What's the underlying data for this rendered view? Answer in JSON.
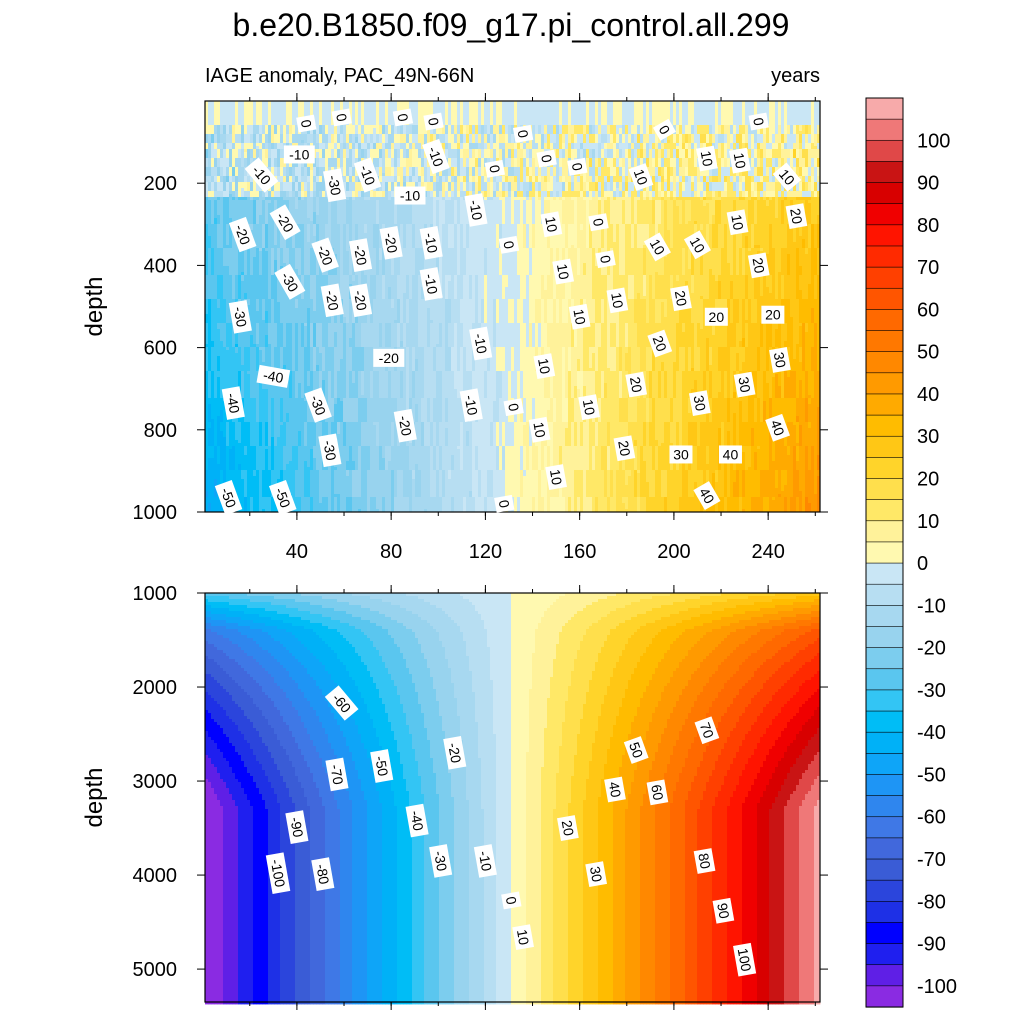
{
  "chart_data": {
    "type": "heatmap",
    "title": "b.e20.B1850.f09_g17.pi_control.all.299",
    "subtitle_left": "IAGE anomaly, PAC_49N-66N",
    "subtitle_right": "years",
    "x_ticks": [
      "40",
      "80",
      "120",
      "160",
      "200",
      "240"
    ],
    "x_tick_values": [
      40,
      80,
      120,
      160,
      200,
      240
    ],
    "xlim": [
      1,
      262
    ],
    "colorbar": {
      "levels": [
        -105,
        -100,
        -95,
        -90,
        -85,
        -80,
        -75,
        -70,
        -65,
        -60,
        -55,
        -50,
        -45,
        -40,
        -35,
        -30,
        -25,
        -20,
        -15,
        -10,
        -5,
        0,
        5,
        10,
        15,
        20,
        25,
        30,
        35,
        40,
        45,
        50,
        55,
        60,
        65,
        70,
        75,
        80,
        85,
        90,
        95,
        100,
        105
      ],
      "colors": [
        "#8a2be2",
        "#5f1fe6",
        "#1f1fef",
        "#0000ff",
        "#1e30e6",
        "#2b45dc",
        "#3a5cd6",
        "#4168dc",
        "#3f78e6",
        "#2f86ee",
        "#1e95f5",
        "#0ea5f8",
        "#00b1f7",
        "#00bdf6",
        "#33c5f4",
        "#5ac6ef",
        "#7ccdee",
        "#98d3ee",
        "#a7d8f0",
        "#b7def2",
        "#c9e6f5",
        "#fff9b0",
        "#fff29a",
        "#ffe867",
        "#ffdf4c",
        "#ffd42a",
        "#ffc715",
        "#ffbc00",
        "#ffaa00",
        "#ff9a00",
        "#ff8800",
        "#ff7800",
        "#ff6900",
        "#ff5500",
        "#ff4000",
        "#ff2a00",
        "#ff1400",
        "#f00000",
        "#d80000",
        "#c91414",
        "#e04848",
        "#ef7878",
        "#f7aaaa"
      ],
      "tick_labels": [
        "100",
        "90",
        "80",
        "70",
        "60",
        "50",
        "40",
        "30",
        "20",
        "10",
        "0",
        "-10",
        "-20",
        "-30",
        "-40",
        "-50",
        "-60",
        "-70",
        "-80",
        "-90",
        "-100"
      ],
      "tick_values": [
        100,
        90,
        80,
        70,
        60,
        50,
        40,
        30,
        20,
        10,
        0,
        -10,
        -20,
        -30,
        -40,
        -50,
        -60,
        -70,
        -80,
        -90,
        -100
      ]
    },
    "panels": [
      {
        "name": "upper",
        "ylabel": "depth",
        "ylim": [
          0,
          1000
        ],
        "y_inverted": true,
        "y_ticks": [
          "200",
          "400",
          "600",
          "800",
          "1000"
        ],
        "y_tick_values": [
          200,
          400,
          600,
          800,
          1000
        ],
        "zero_crossing_x": 131,
        "field_description": "IAGE anomaly grows from about -50 (left, deep) to +45 (right, deep); noisy near surface",
        "contour_labels": [
          {
            "x": 44,
            "y": 55,
            "text": "0",
            "rot": 80
          },
          {
            "x": 59,
            "y": 40,
            "text": "0",
            "rot": 80
          },
          {
            "x": 85,
            "y": 40,
            "text": "0",
            "rot": 80
          },
          {
            "x": 98,
            "y": 50,
            "text": "0",
            "rot": 80
          },
          {
            "x": 136,
            "y": 80,
            "text": "0",
            "rot": 80
          },
          {
            "x": 196,
            "y": 70,
            "text": "0",
            "rot": 60
          },
          {
            "x": 236,
            "y": 50,
            "text": "0",
            "rot": 80
          },
          {
            "x": 41,
            "y": 130,
            "text": "-10",
            "rot": 0
          },
          {
            "x": 99,
            "y": 135,
            "text": "-10",
            "rot": 70
          },
          {
            "x": 146,
            "y": 140,
            "text": "0",
            "rot": 80
          },
          {
            "x": 159,
            "y": 160,
            "text": "0",
            "rot": 80
          },
          {
            "x": 214,
            "y": 140,
            "text": "10",
            "rot": 80
          },
          {
            "x": 228,
            "y": 145,
            "text": "10",
            "rot": 80
          },
          {
            "x": 25,
            "y": 180,
            "text": "-10",
            "rot": 50
          },
          {
            "x": 56,
            "y": 205,
            "text": "-30",
            "rot": 80
          },
          {
            "x": 70,
            "y": 180,
            "text": "-10",
            "rot": 70
          },
          {
            "x": 124,
            "y": 165,
            "text": "0",
            "rot": 80
          },
          {
            "x": 186,
            "y": 185,
            "text": "10",
            "rot": 70
          },
          {
            "x": 248,
            "y": 185,
            "text": "10",
            "rot": 50
          },
          {
            "x": 88,
            "y": 230,
            "text": "-10",
            "rot": 0
          },
          {
            "x": 116,
            "y": 265,
            "text": "-10",
            "rot": 80
          },
          {
            "x": 148,
            "y": 300,
            "text": "10",
            "rot": 80
          },
          {
            "x": 168,
            "y": 295,
            "text": "0",
            "rot": 80
          },
          {
            "x": 227,
            "y": 295,
            "text": "10",
            "rot": 80
          },
          {
            "x": 252,
            "y": 280,
            "text": "20",
            "rot": 80
          },
          {
            "x": 35,
            "y": 295,
            "text": "-20",
            "rot": 60
          },
          {
            "x": 17,
            "y": 325,
            "text": "-20",
            "rot": 70
          },
          {
            "x": 80,
            "y": 345,
            "text": "-20",
            "rot": 80
          },
          {
            "x": 97,
            "y": 345,
            "text": "-10",
            "rot": 80
          },
          {
            "x": 130,
            "y": 350,
            "text": "0",
            "rot": 80
          },
          {
            "x": 193,
            "y": 355,
            "text": "10",
            "rot": 60
          },
          {
            "x": 210,
            "y": 350,
            "text": "10",
            "rot": 60
          },
          {
            "x": 52,
            "y": 375,
            "text": "-20",
            "rot": 70
          },
          {
            "x": 67,
            "y": 375,
            "text": "-20",
            "rot": 80
          },
          {
            "x": 171,
            "y": 385,
            "text": "0",
            "rot": 80
          },
          {
            "x": 236,
            "y": 400,
            "text": "20",
            "rot": 80
          },
          {
            "x": 153,
            "y": 415,
            "text": "10",
            "rot": 80
          },
          {
            "x": 37,
            "y": 440,
            "text": "-30",
            "rot": 60
          },
          {
            "x": 97,
            "y": 445,
            "text": "-10",
            "rot": 80
          },
          {
            "x": 55,
            "y": 485,
            "text": "-20",
            "rot": 80
          },
          {
            "x": 67,
            "y": 485,
            "text": "-20",
            "rot": 80
          },
          {
            "x": 176,
            "y": 485,
            "text": "10",
            "rot": 80
          },
          {
            "x": 203,
            "y": 480,
            "text": "20",
            "rot": 80
          },
          {
            "x": 160,
            "y": 525,
            "text": "10",
            "rot": 80
          },
          {
            "x": 218,
            "y": 525,
            "text": "20",
            "rot": 0
          },
          {
            "x": 242,
            "y": 520,
            "text": "20",
            "rot": 0
          },
          {
            "x": 16,
            "y": 525,
            "text": "-30",
            "rot": 80
          },
          {
            "x": 118,
            "y": 590,
            "text": "-10",
            "rot": 80
          },
          {
            "x": 194,
            "y": 590,
            "text": "20",
            "rot": 70
          },
          {
            "x": 79,
            "y": 625,
            "text": "-20",
            "rot": 0
          },
          {
            "x": 145,
            "y": 645,
            "text": "10",
            "rot": 80
          },
          {
            "x": 245,
            "y": 630,
            "text": "30",
            "rot": 80
          },
          {
            "x": 30,
            "y": 670,
            "text": "-40",
            "rot": 10
          },
          {
            "x": 184,
            "y": 690,
            "text": "20",
            "rot": 80
          },
          {
            "x": 230,
            "y": 690,
            "text": "30",
            "rot": 80
          },
          {
            "x": 13,
            "y": 735,
            "text": "-40",
            "rot": 80
          },
          {
            "x": 49,
            "y": 740,
            "text": "-30",
            "rot": 70
          },
          {
            "x": 114,
            "y": 740,
            "text": "-10",
            "rot": 80
          },
          {
            "x": 132,
            "y": 745,
            "text": "0",
            "rot": 80
          },
          {
            "x": 164,
            "y": 745,
            "text": "10",
            "rot": 80
          },
          {
            "x": 211,
            "y": 735,
            "text": "30",
            "rot": 80
          },
          {
            "x": 86,
            "y": 790,
            "text": "-20",
            "rot": 80
          },
          {
            "x": 143,
            "y": 800,
            "text": "10",
            "rot": 80
          },
          {
            "x": 244,
            "y": 795,
            "text": "40",
            "rot": 70
          },
          {
            "x": 54,
            "y": 850,
            "text": "-30",
            "rot": 80
          },
          {
            "x": 179,
            "y": 845,
            "text": "20",
            "rot": 80
          },
          {
            "x": 203,
            "y": 860,
            "text": "30",
            "rot": 0
          },
          {
            "x": 224,
            "y": 860,
            "text": "40",
            "rot": 0
          },
          {
            "x": 150,
            "y": 915,
            "text": "10",
            "rot": 80
          },
          {
            "x": 11,
            "y": 965,
            "text": "-50",
            "rot": 70
          },
          {
            "x": 34,
            "y": 965,
            "text": "-50",
            "rot": 70
          },
          {
            "x": 214,
            "y": 960,
            "text": "40",
            "rot": 60
          },
          {
            "x": 128,
            "y": 980,
            "text": "0",
            "rot": 80
          }
        ]
      },
      {
        "name": "lower",
        "ylabel": "depth",
        "ylim": [
          1000,
          5350
        ],
        "y_inverted": true,
        "y_ticks": [
          "1000",
          "2000",
          "3000",
          "4000",
          "5000"
        ],
        "y_tick_values": [
          1000,
          2000,
          3000,
          4000,
          5000
        ],
        "zero_crossing_x": 131,
        "field_description": "Smooth gradient from about -105 (left, deep) through 0 near x=131 to +105 (right, deep)",
        "contour_labels": [
          {
            "x": 59,
            "y": 2170,
            "text": "-60",
            "rot": 50
          },
          {
            "x": 107,
            "y": 2700,
            "text": "-20",
            "rot": 80
          },
          {
            "x": 214,
            "y": 2460,
            "text": "70",
            "rot": 70
          },
          {
            "x": 184,
            "y": 2670,
            "text": "50",
            "rot": 70
          },
          {
            "x": 57,
            "y": 2930,
            "text": "-70",
            "rot": 80
          },
          {
            "x": 76,
            "y": 2840,
            "text": "-50",
            "rot": 80
          },
          {
            "x": 175,
            "y": 3090,
            "text": "40",
            "rot": 80
          },
          {
            "x": 193,
            "y": 3120,
            "text": "60",
            "rot": 80
          },
          {
            "x": 91,
            "y": 3420,
            "text": "-40",
            "rot": 80
          },
          {
            "x": 155,
            "y": 3500,
            "text": "20",
            "rot": 80
          },
          {
            "x": 40,
            "y": 3490,
            "text": "-90",
            "rot": 80
          },
          {
            "x": 101,
            "y": 3850,
            "text": "-30",
            "rot": 80
          },
          {
            "x": 120,
            "y": 3850,
            "text": "-10",
            "rot": 80
          },
          {
            "x": 213,
            "y": 3850,
            "text": "80",
            "rot": 80
          },
          {
            "x": 32,
            "y": 3980,
            "text": "-100",
            "rot": 80
          },
          {
            "x": 51,
            "y": 3990,
            "text": "-80",
            "rot": 80
          },
          {
            "x": 167,
            "y": 3990,
            "text": "30",
            "rot": 80
          },
          {
            "x": 131,
            "y": 4270,
            "text": "0",
            "rot": 80
          },
          {
            "x": 221,
            "y": 4380,
            "text": "90",
            "rot": 80
          },
          {
            "x": 136,
            "y": 4660,
            "text": "10",
            "rot": 80
          },
          {
            "x": 230,
            "y": 4900,
            "text": "100",
            "rot": 80
          }
        ]
      }
    ]
  }
}
